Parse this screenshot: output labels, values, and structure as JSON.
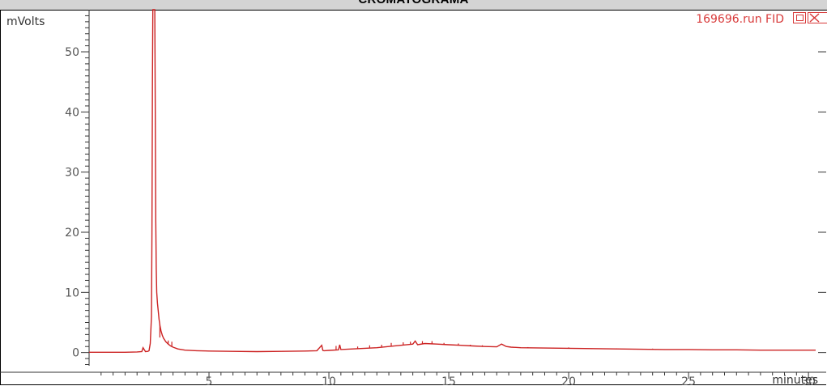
{
  "window": {
    "title": "CROMATOGRAMA",
    "run_label": "169696.run FID",
    "restore_icon": "restore-icon",
    "close_icon": "close-icon"
  },
  "colors": {
    "trace": "#cc2222",
    "axis": "#333333",
    "run_label": "#d83a3a",
    "title_bar": "#d4d4d4"
  },
  "chart_data": {
    "type": "line",
    "title": "CROMATOGRAMA",
    "xlabel": "minutes",
    "ylabel": "mVolts",
    "xlim": [
      0,
      30.3
    ],
    "ylim": [
      -2.2,
      57
    ],
    "x_ticks": [
      5,
      10,
      15,
      20,
      25,
      30
    ],
    "y_ticks": [
      0,
      10,
      20,
      30,
      40,
      50
    ],
    "grid": false,
    "legend": "none",
    "series": [
      {
        "name": "169696.run FID",
        "x": [
          0.0,
          1.5,
          2.0,
          2.2,
          2.25,
          2.35,
          2.45,
          2.5,
          2.55,
          2.6,
          2.62,
          2.64,
          2.66,
          2.7,
          2.72,
          2.74,
          2.76,
          2.78,
          2.8,
          2.82,
          2.85,
          2.88,
          2.92,
          2.96,
          3.0,
          3.05,
          3.1,
          3.2,
          3.3,
          3.4,
          3.5,
          3.7,
          4.0,
          4.5,
          5.0,
          6.0,
          7.0,
          8.0,
          9.0,
          9.5,
          9.7,
          9.75,
          9.8,
          10.0,
          10.4,
          10.45,
          10.5,
          11.0,
          11.5,
          12.0,
          12.5,
          13.0,
          13.5,
          13.6,
          13.7,
          14.0,
          14.5,
          15.0,
          15.5,
          16.0,
          16.5,
          17.0,
          17.2,
          17.4,
          17.6,
          18.0,
          19.0,
          20.0,
          21.0,
          22.0,
          23.0,
          24.0,
          25.0,
          26.0,
          27.0,
          28.0,
          29.0,
          30.0,
          30.3
        ],
        "y": [
          0.05,
          0.05,
          0.1,
          0.15,
          0.8,
          0.15,
          0.2,
          0.3,
          1.5,
          6.0,
          20.0,
          45.0,
          57.0,
          57.0,
          57.0,
          57.0,
          40.0,
          22.0,
          14.0,
          10.0,
          8.2,
          7.0,
          5.5,
          4.4,
          3.6,
          2.9,
          2.4,
          1.8,
          1.4,
          1.1,
          0.9,
          0.6,
          0.4,
          0.3,
          0.25,
          0.2,
          0.15,
          0.2,
          0.25,
          0.3,
          1.2,
          0.35,
          0.3,
          0.35,
          0.45,
          1.3,
          0.5,
          0.6,
          0.7,
          0.8,
          1.0,
          1.2,
          1.4,
          1.9,
          1.3,
          1.5,
          1.4,
          1.3,
          1.2,
          1.1,
          1.0,
          0.95,
          1.4,
          1.0,
          0.9,
          0.8,
          0.75,
          0.7,
          0.65,
          0.6,
          0.55,
          0.5,
          0.5,
          0.45,
          0.45,
          0.4,
          0.4,
          0.4,
          0.4
        ]
      }
    ],
    "spikes": [
      {
        "x": 2.95,
        "y": 2.5
      },
      {
        "x": 3.3,
        "y": 2.0
      },
      {
        "x": 3.45,
        "y": 1.8
      },
      {
        "x": 10.3,
        "y": 1.1
      },
      {
        "x": 11.2,
        "y": 1.0
      },
      {
        "x": 11.7,
        "y": 1.2
      },
      {
        "x": 12.2,
        "y": 1.3
      },
      {
        "x": 12.6,
        "y": 1.6
      },
      {
        "x": 13.1,
        "y": 1.7
      },
      {
        "x": 13.4,
        "y": 1.8
      },
      {
        "x": 13.9,
        "y": 1.9
      },
      {
        "x": 14.3,
        "y": 1.9
      },
      {
        "x": 14.8,
        "y": 1.6
      },
      {
        "x": 15.4,
        "y": 1.5
      },
      {
        "x": 15.9,
        "y": 1.3
      },
      {
        "x": 16.4,
        "y": 1.2
      },
      {
        "x": 18.3,
        "y": 0.9
      },
      {
        "x": 19.1,
        "y": 0.8
      },
      {
        "x": 20.0,
        "y": 0.85
      },
      {
        "x": 22.0,
        "y": 0.7
      },
      {
        "x": 23.5,
        "y": 0.65
      }
    ]
  }
}
